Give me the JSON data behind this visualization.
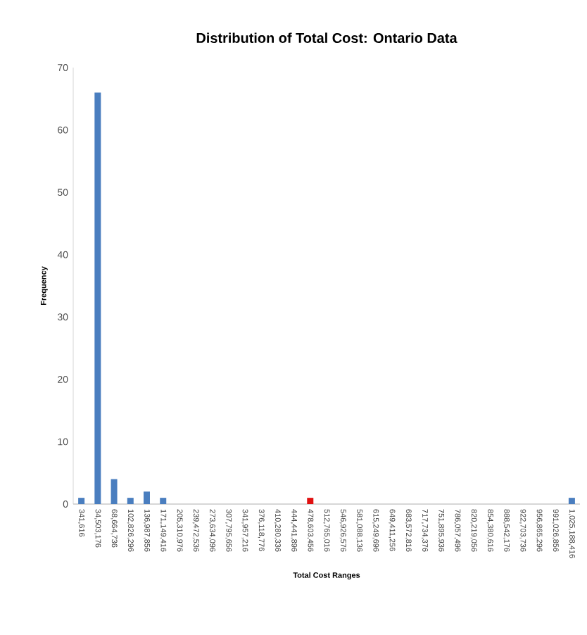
{
  "chart_data": {
    "type": "bar",
    "title": "Distribution of Total Cost: Ontario Data",
    "xlabel": "Total Cost Ranges",
    "ylabel": "Frequency",
    "categories": [
      "341,616",
      "34,503,176",
      "68,664,736",
      "102,826,296",
      "136,987,856",
      "171,149,416",
      "205,310,976",
      "239,472,536",
      "273,634,096",
      "307,795,656",
      "341,957,216",
      "376,118,776",
      "410,280,336",
      "444,441,896",
      "478,603,456",
      "512,765,016",
      "546,926,576",
      "581,088,136",
      "615,249,696",
      "649,411,256",
      "683,572,816",
      "717,734,376",
      "751,895,936",
      "786,057,496",
      "820,219,056",
      "854,380,616",
      "888,542,176",
      "922,703,736",
      "956,865,296",
      "991,026,856",
      "1,025,188,416"
    ],
    "values": [
      1,
      66,
      4,
      1,
      2,
      1,
      0,
      0,
      0,
      0,
      0,
      0,
      0,
      0,
      1,
      0,
      0,
      0,
      0,
      0,
      0,
      0,
      0,
      0,
      0,
      0,
      0,
      0,
      0,
      0,
      1
    ],
    "colors": [
      "#4a7ebf",
      "#4a7ebf",
      "#4a7ebf",
      "#4a7ebf",
      "#4a7ebf",
      "#4a7ebf",
      "#4a7ebf",
      "#4a7ebf",
      "#4a7ebf",
      "#4a7ebf",
      "#4a7ebf",
      "#4a7ebf",
      "#4a7ebf",
      "#4a7ebf",
      "#e01010",
      "#4a7ebf",
      "#4a7ebf",
      "#4a7ebf",
      "#4a7ebf",
      "#4a7ebf",
      "#4a7ebf",
      "#4a7ebf",
      "#4a7ebf",
      "#4a7ebf",
      "#4a7ebf",
      "#4a7ebf",
      "#4a7ebf",
      "#4a7ebf",
      "#4a7ebf",
      "#4a7ebf",
      "#4a7ebf"
    ],
    "ylim": [
      0,
      70
    ],
    "yticks": [
      0,
      10,
      20,
      30,
      40,
      50,
      60,
      70
    ],
    "grid": false
  }
}
